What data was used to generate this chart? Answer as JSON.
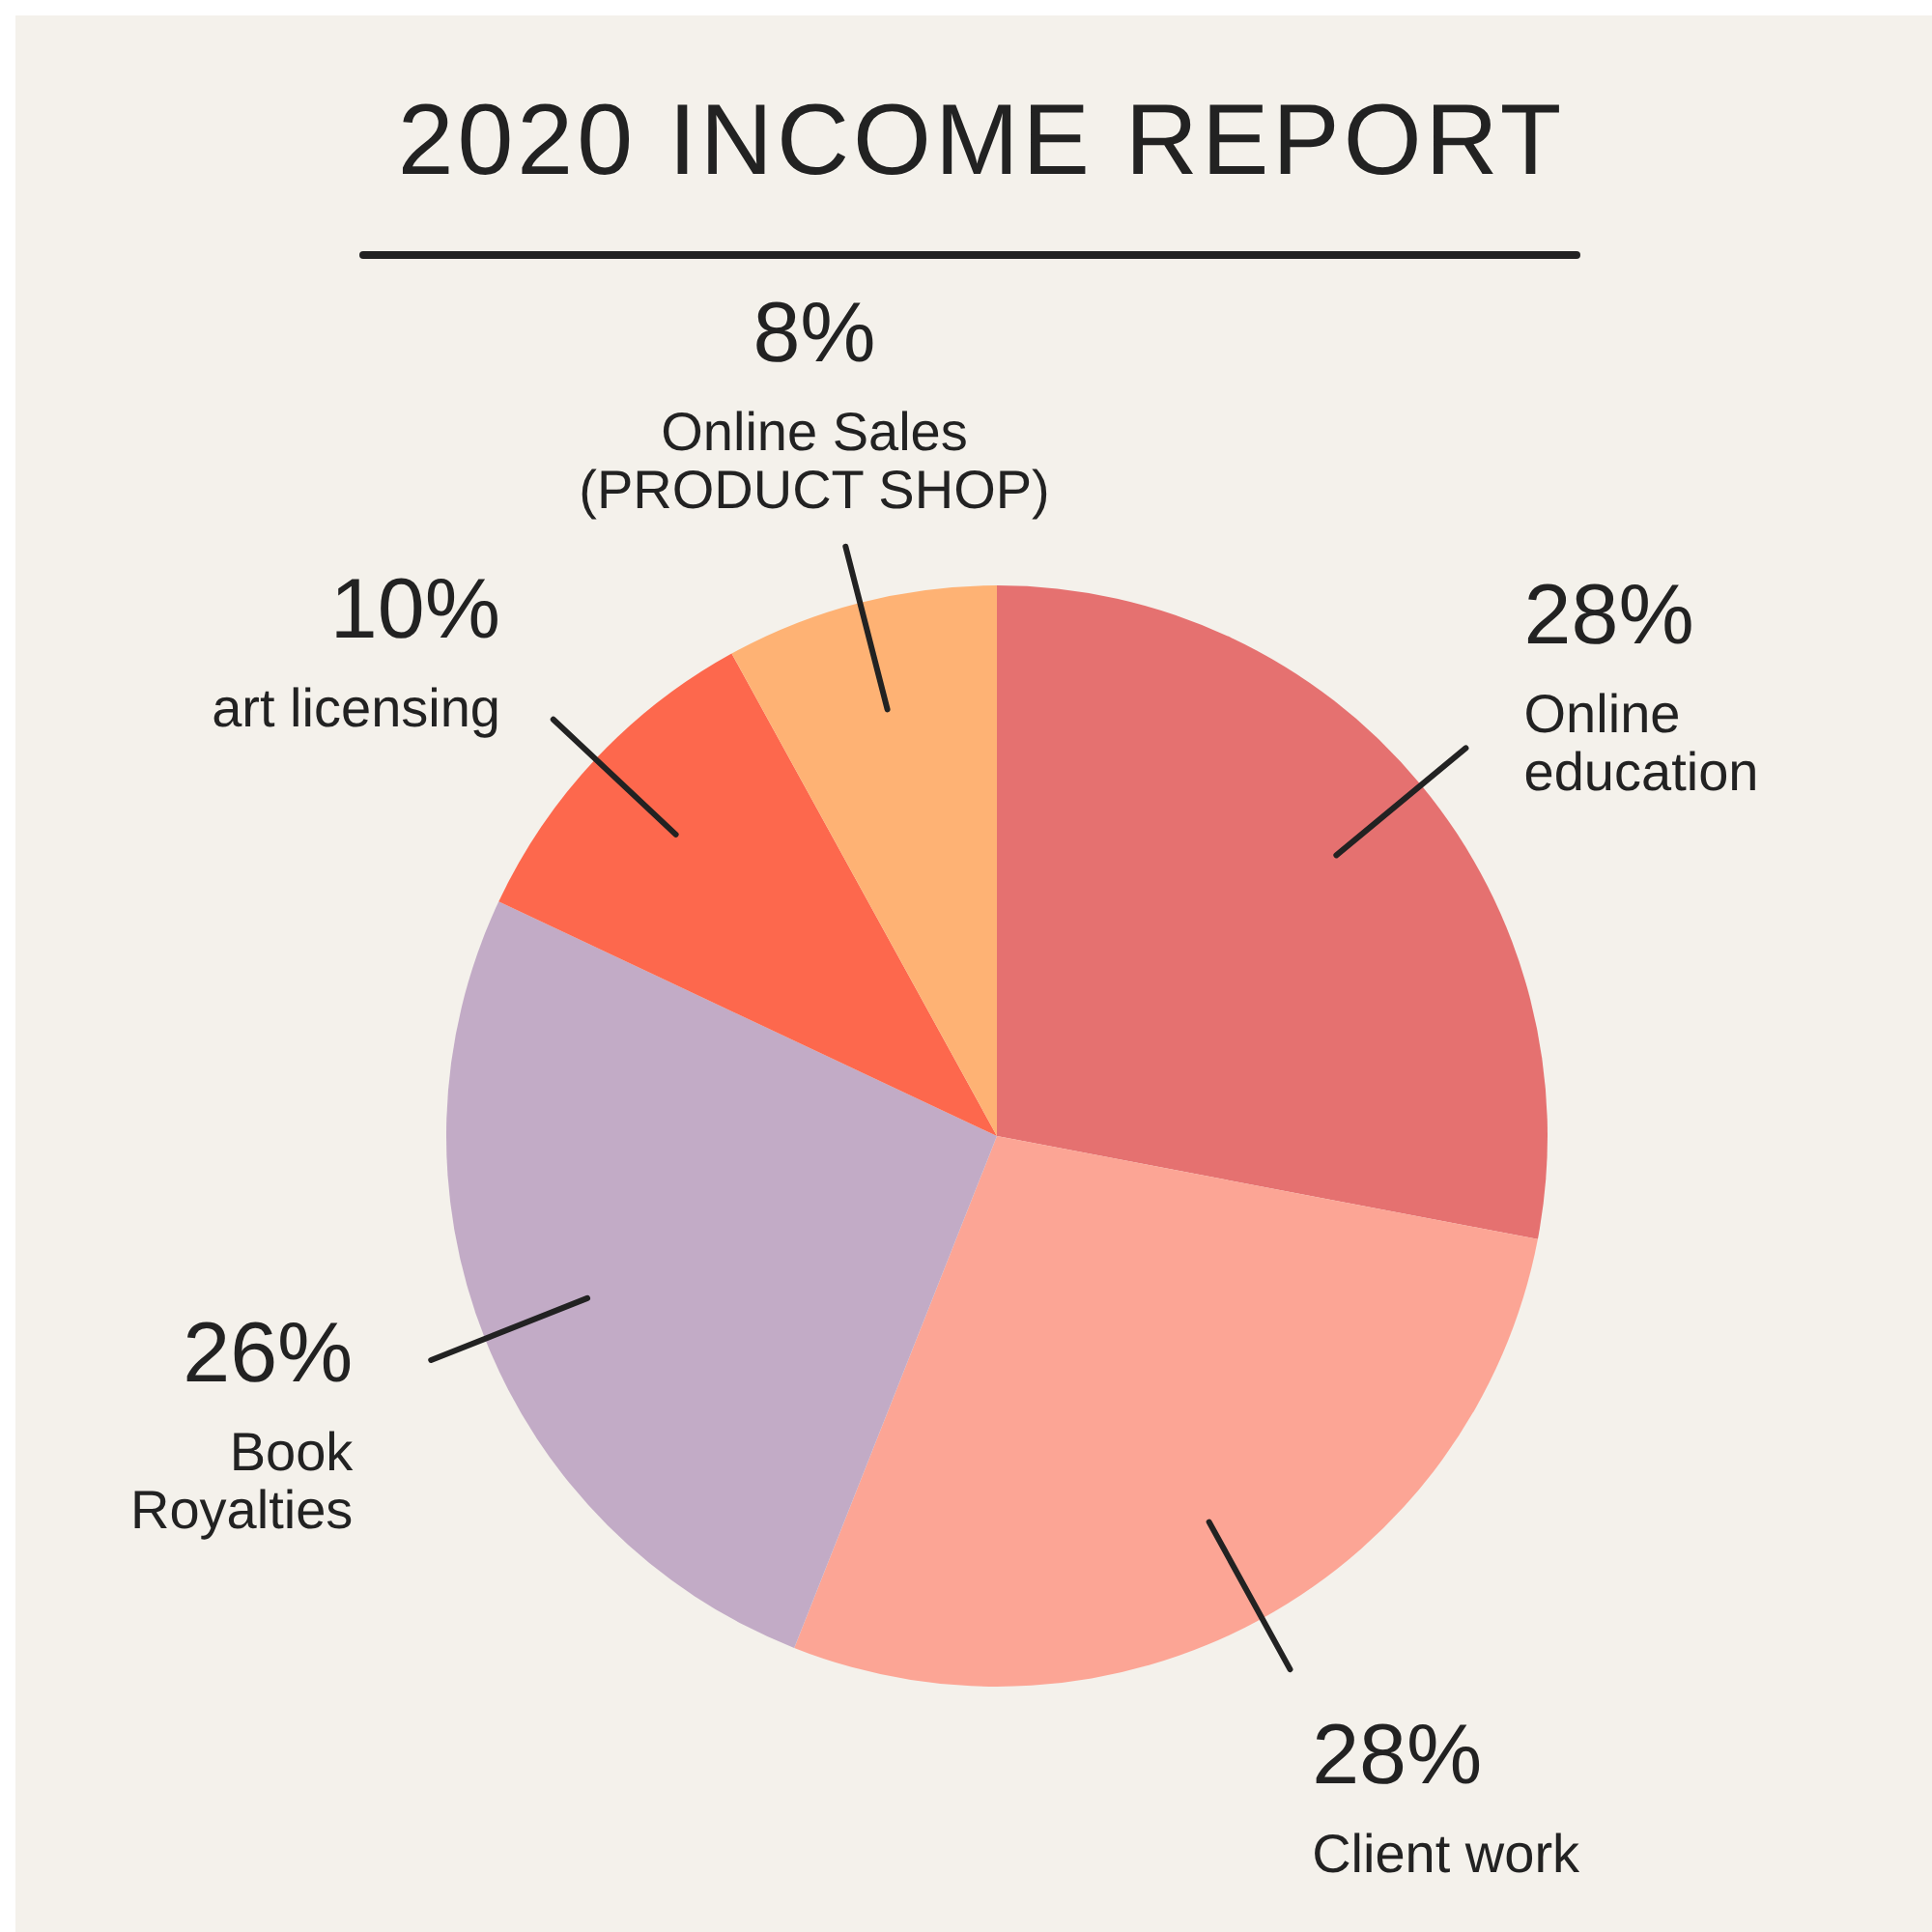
{
  "chart_data": {
    "type": "pie",
    "title": "2020 INCOME REPORT",
    "categories": [
      "Online education",
      "Client work",
      "Book Royalties",
      "art licensing",
      "Online Sales (PRODUCT SHOP)"
    ],
    "values": [
      28,
      28,
      26,
      10,
      8
    ],
    "colors": [
      "#e57170",
      "#fca595",
      "#c2abc6",
      "#fd684d",
      "#feb274"
    ],
    "value_labels": [
      "28%",
      "28%",
      "26%",
      "10%",
      "8%"
    ]
  }
}
